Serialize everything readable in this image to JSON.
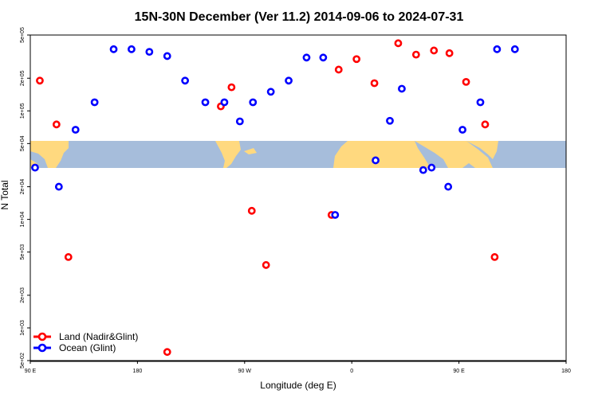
{
  "chart_data": {
    "type": "scatter",
    "title": "15N-30N December (Ver 11.2)   2014-09-06 to 2024-07-31",
    "xlabel": "Longitude (deg E)",
    "ylabel": "N Total",
    "x_ticks": [
      {
        "value": 90,
        "label": "90 E"
      },
      {
        "value": 180,
        "label": "180"
      },
      {
        "value": 270,
        "label": "90 W"
      },
      {
        "value": 360,
        "label": "0"
      },
      {
        "value": 450,
        "label": "90 E"
      },
      {
        "value": 540,
        "label": "180"
      }
    ],
    "y_ticks": [
      {
        "value": 500,
        "label": "5e+02"
      },
      {
        "value": 1000,
        "label": "1e+03"
      },
      {
        "value": 2000,
        "label": "2e+03"
      },
      {
        "value": 5000,
        "label": "5e+03"
      },
      {
        "value": 10000,
        "label": "1e+04"
      },
      {
        "value": 20000,
        "label": "2e+04"
      },
      {
        "value": 50000,
        "label": "5e+04"
      },
      {
        "value": 100000,
        "label": "1e+05"
      },
      {
        "value": 200000,
        "label": "2e+05"
      },
      {
        "value": 500000,
        "label": "5e+05"
      }
    ],
    "xlim": [
      90,
      540
    ],
    "ylim": [
      500,
      500000
    ],
    "y_scale": "log",
    "grid": false,
    "legend_position": "bottom-left",
    "colors": {
      "land": "#ff0000",
      "ocean": "#0000ff",
      "map_land": "#ffd97f",
      "map_ocean": "#a6bddb"
    },
    "series": [
      {
        "name": "Land (Nadir&Glint)",
        "color": "#ff0000",
        "points": [
          [
            98,
            190000
          ],
          [
            112,
            75000
          ],
          [
            122,
            4500
          ],
          [
            205,
            600
          ],
          [
            250,
            110000
          ],
          [
            259,
            165000
          ],
          [
            276,
            12000
          ],
          [
            288,
            3800
          ],
          [
            343,
            11000
          ],
          [
            349,
            240000
          ],
          [
            364,
            300000
          ],
          [
            379,
            180000
          ],
          [
            399,
            420000
          ],
          [
            414,
            330000
          ],
          [
            429,
            360000
          ],
          [
            442,
            340000
          ],
          [
            456,
            185000
          ],
          [
            472,
            75000
          ],
          [
            480,
            4500
          ]
        ]
      },
      {
        "name": "Ocean (Glint)",
        "color": "#0000ff",
        "points": [
          [
            94,
            30000
          ],
          [
            114,
            20000
          ],
          [
            128,
            67000
          ],
          [
            144,
            120000
          ],
          [
            160,
            370000
          ],
          [
            175,
            370000
          ],
          [
            190,
            350000
          ],
          [
            205,
            320000
          ],
          [
            220,
            190000
          ],
          [
            237,
            120000
          ],
          [
            253,
            120000
          ],
          [
            266,
            80000
          ],
          [
            277,
            120000
          ],
          [
            292,
            150000
          ],
          [
            307,
            190000
          ],
          [
            322,
            310000
          ],
          [
            336,
            310000
          ],
          [
            346,
            11000
          ],
          [
            380,
            35000
          ],
          [
            392,
            81000
          ],
          [
            402,
            160000
          ],
          [
            420,
            28500
          ],
          [
            427,
            30000
          ],
          [
            441,
            20000
          ],
          [
            453,
            67000
          ],
          [
            468,
            120000
          ],
          [
            482,
            370000
          ],
          [
            497,
            370000
          ]
        ]
      }
    ]
  }
}
